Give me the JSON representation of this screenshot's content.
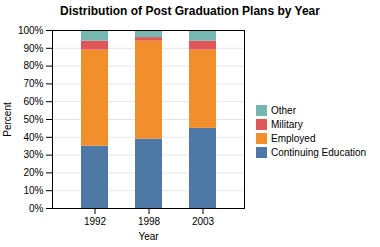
{
  "chart_data": {
    "type": "bar",
    "title": "Distribution of Post Graduation Plans by Year",
    "xlabel": "Year",
    "ylabel": "Percent",
    "categories": [
      "1992",
      "1998",
      "2003"
    ],
    "series": [
      {
        "name": "Continuing Education",
        "values": [
          35,
          39,
          45
        ]
      },
      {
        "name": "Employed",
        "values": [
          54,
          55,
          44
        ]
      },
      {
        "name": "Military",
        "values": [
          5,
          2,
          5
        ]
      },
      {
        "name": "Other",
        "values": [
          6,
          4,
          6
        ]
      }
    ],
    "stacked": true,
    "ylim": [
      0,
      100
    ],
    "yticks": [
      {
        "value": 0,
        "label": "0%"
      },
      {
        "value": 10,
        "label": "10%"
      },
      {
        "value": 20,
        "label": "20%"
      },
      {
        "value": 30,
        "label": "30%"
      },
      {
        "value": 40,
        "label": "40%"
      },
      {
        "value": 50,
        "label": "50%"
      },
      {
        "value": 60,
        "label": "60%"
      },
      {
        "value": 70,
        "label": "70%"
      },
      {
        "value": 80,
        "label": "80%"
      },
      {
        "value": 90,
        "label": "90%"
      },
      {
        "value": 100,
        "label": "100%"
      }
    ],
    "grid": true,
    "legend": "right"
  }
}
